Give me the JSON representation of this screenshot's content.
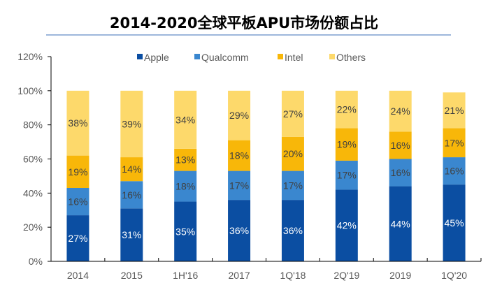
{
  "chart_data": {
    "type": "bar",
    "stacked": true,
    "title": "2014-2020全球平板APU市场份额占比",
    "xlabel": "",
    "ylabel": "",
    "ylim": [
      0,
      120
    ],
    "yticks": [
      "0%",
      "20%",
      "40%",
      "60%",
      "80%",
      "100%",
      "120%"
    ],
    "categories": [
      "2014",
      "2015",
      "1H'16",
      "2017",
      "1Q'18",
      "2Q'19",
      "2019",
      "1Q'20"
    ],
    "legend_position": "top-center",
    "grid": false,
    "series": [
      {
        "name": "Apple",
        "color": "#0b4ea2",
        "label_color": "#ffffff",
        "values": [
          27,
          31,
          35,
          36,
          36,
          42,
          44,
          45
        ]
      },
      {
        "name": "Qualcomm",
        "color": "#3a87cf",
        "label_color": "#404040",
        "values": [
          16,
          16,
          18,
          17,
          17,
          17,
          16,
          16
        ]
      },
      {
        "name": "Intel",
        "color": "#f8b709",
        "label_color": "#404040",
        "values": [
          19,
          14,
          13,
          18,
          20,
          19,
          16,
          17
        ]
      },
      {
        "name": "Others",
        "color": "#fdd96b",
        "label_color": "#404040",
        "values": [
          38,
          39,
          34,
          29,
          27,
          22,
          24,
          21
        ]
      }
    ]
  }
}
